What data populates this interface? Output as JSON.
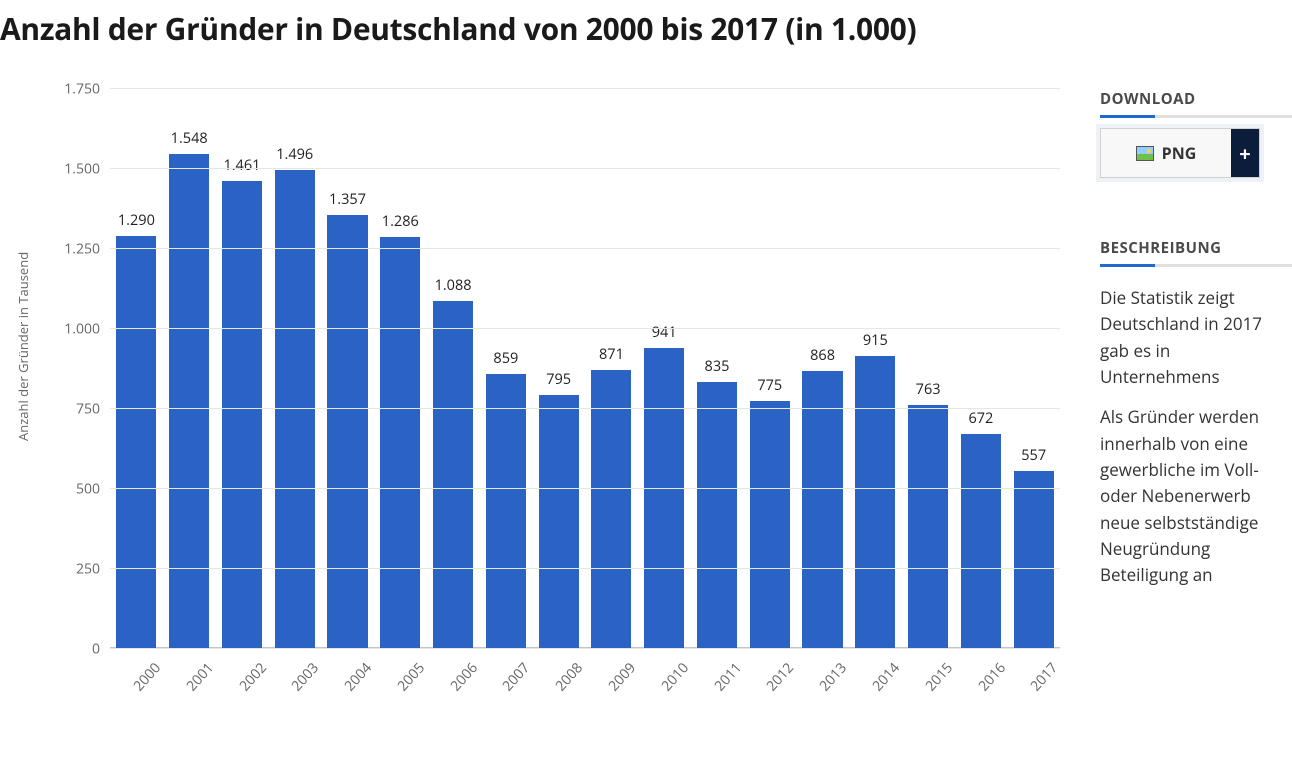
{
  "title": "Anzahl der Gründer in Deutschland von 2000 bis 2017 (in 1.000)",
  "chart": {
    "type": "bar",
    "y_axis_title": "Anzahl der Gründer in Tausend",
    "ylim": [
      0,
      1750
    ],
    "ytick_step": 250,
    "ytick_labels": [
      "0",
      "250",
      "500",
      "750",
      "1.000",
      "1.250",
      "1.500",
      "1.750"
    ],
    "categories": [
      "2000",
      "2001",
      "2002",
      "2003",
      "2004",
      "2005",
      "2006",
      "2007",
      "2008",
      "2009",
      "2010",
      "2011",
      "2012",
      "2013",
      "2014",
      "2015",
      "2016",
      "2017"
    ],
    "values": [
      1290,
      1548,
      1461,
      1496,
      1357,
      1286,
      1088,
      859,
      795,
      871,
      941,
      835,
      775,
      868,
      915,
      763,
      672,
      557
    ],
    "value_labels": [
      "1.290",
      "1.548",
      "1.461",
      "1.496",
      "1.357",
      "1.286",
      "1.088",
      "859",
      "795",
      "871",
      "941",
      "835",
      "775",
      "868",
      "915",
      "763",
      "672",
      "557"
    ],
    "bar_color": "#2a63c3",
    "grid_color": "#e6e6e6",
    "axis_line_color": "#bfc5cc",
    "background_color": "#ffffff",
    "label_fontsize": 14.5,
    "tick_fontsize": 14,
    "bar_width_ratio": 0.76,
    "title_fontsize": 30
  },
  "sidebar": {
    "download": {
      "heading": "DOWNLOAD",
      "button_label": "PNG",
      "expand_symbol": "+"
    },
    "description": {
      "heading": "BESCHREIBUNG",
      "para1": "Die Statistik zeigt Deutschland in 2017 gab es in Unternehmens",
      "para2": "Als Gründer werden innerhalb von eine gewerbliche im Voll- oder Nebenerwerb neue selbstständige Neugründung Beteiligung an"
    }
  },
  "colors": {
    "accent": "#1f6bd0",
    "text": "#333333",
    "muted": "#666666",
    "dark_button": "#0a1e3c"
  }
}
